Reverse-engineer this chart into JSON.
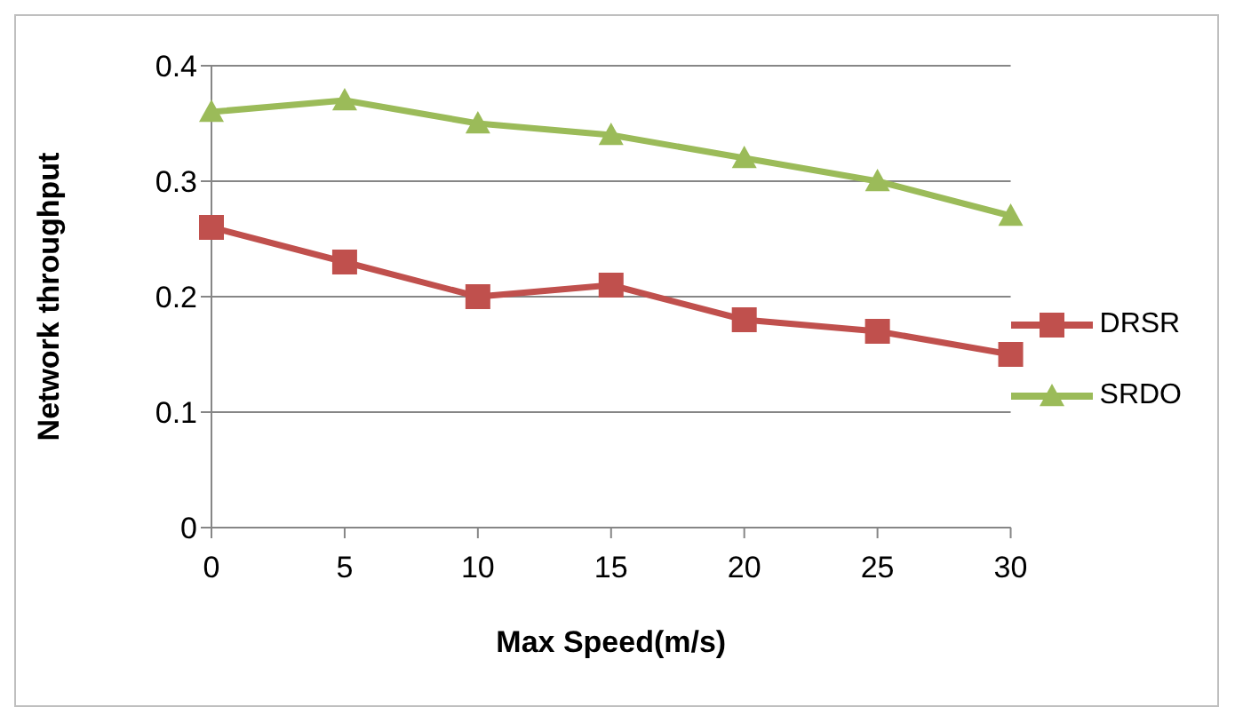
{
  "chart_data": {
    "type": "line",
    "xlabel": "Max Speed(m/s)",
    "ylabel": "Network throughput",
    "categories": [
      "0",
      "5",
      "10",
      "15",
      "20",
      "25",
      "30"
    ],
    "series": [
      {
        "name": "DRSR",
        "color": "#c0504d",
        "marker": "square",
        "values": [
          0.26,
          0.23,
          0.2,
          0.21,
          0.18,
          0.17,
          0.15
        ]
      },
      {
        "name": "SRDO",
        "color": "#9bbb59",
        "marker": "triangle",
        "values": [
          0.36,
          0.37,
          0.35,
          0.34,
          0.32,
          0.3,
          0.27
        ]
      }
    ],
    "ylim": [
      0,
      0.4
    ],
    "yticks": [
      0,
      0.1,
      0.2,
      0.3,
      0.4
    ],
    "grid": "y",
    "legend": "right",
    "line_style": "solid"
  }
}
